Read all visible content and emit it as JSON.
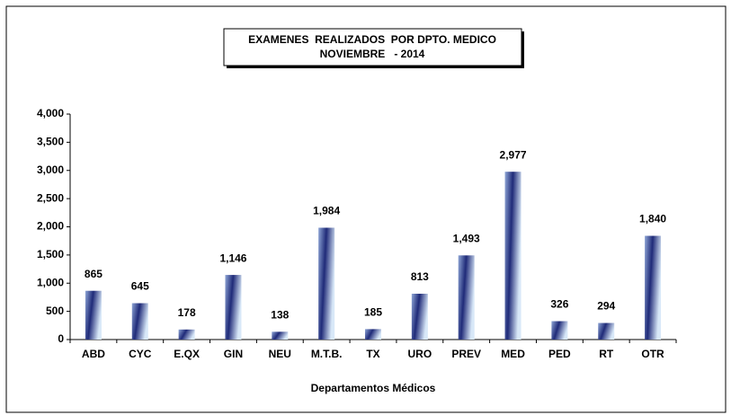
{
  "chart_data": {
    "type": "bar",
    "title": "EXAMENES  REALIZADOS  POR DPTO. MEDICO",
    "subtitle": "NOVIEMBRE   - 2014",
    "x_label": "Departamentos Médicos",
    "categories": [
      "ABD",
      "CYC",
      "E.QX",
      "GIN",
      "NEU",
      "M.T.B.",
      "TX",
      "URO",
      "PREV",
      "MED",
      "PED",
      "RT",
      "OTR"
    ],
    "values": [
      865,
      645,
      178,
      1146,
      138,
      1984,
      185,
      813,
      1493,
      2977,
      326,
      294,
      1840
    ],
    "value_labels": [
      "865",
      "645",
      "178",
      "1,146",
      "138",
      "1,984",
      "185",
      "813",
      "1,493",
      "2,977",
      "326",
      "294",
      "1,840"
    ],
    "color": "#1f2a78",
    "ylim": [
      0,
      4000
    ],
    "yticks": [
      0,
      500,
      {
        "value": 1000,
        "label": "1,000"
      },
      {
        "value": 1500,
        "label": "1,500"
      },
      {
        "value": 2000,
        "label": "2,000"
      },
      {
        "value": 2500,
        "label": "2,500"
      },
      {
        "value": 3000,
        "label": "3,000"
      },
      {
        "value": 3500,
        "label": "3,500"
      },
      {
        "value": 4000,
        "label": "4,000"
      }
    ],
    "grid": false
  }
}
